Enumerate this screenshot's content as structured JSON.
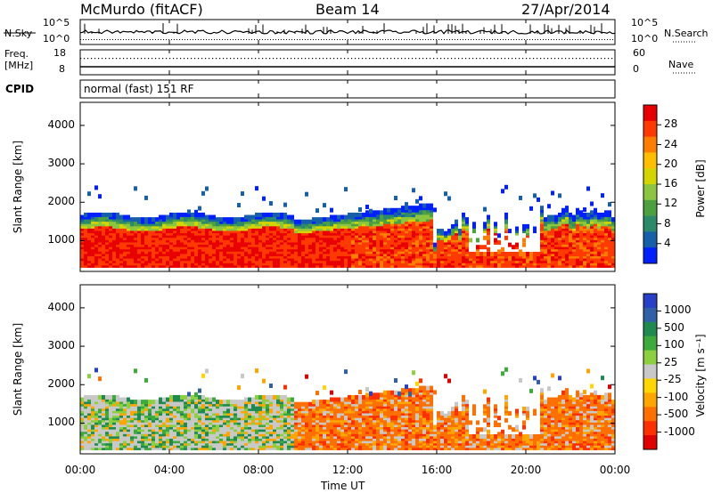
{
  "header": {
    "station": "McMurdo (fitACF)",
    "beam": "Beam 14",
    "date": "27/Apr/2014"
  },
  "sky_panel": {
    "left_label": "N.Sky",
    "right_label": "N.Search",
    "ticks_left": [
      "10^5",
      "10^0"
    ],
    "ticks_right": [
      "10^5",
      "10^0"
    ]
  },
  "freq_panel": {
    "left_label_1": "Freq.",
    "left_label_2": "[MHz]",
    "right_label": "Nave",
    "ticks_left": [
      "18",
      "8"
    ],
    "ticks_right": [
      "60",
      "0"
    ]
  },
  "cpid": {
    "label": "CPID",
    "value": "normal (fast) 151 RF"
  },
  "chart_data": [
    {
      "type": "heatmap",
      "name": "power",
      "ylabel": "Slant Range [km]",
      "yticks": [
        1000,
        2000,
        3000,
        4000
      ],
      "ylim": [
        200,
        4600
      ],
      "colorbar_label": "Power [dB]",
      "colorbar_ticks": [
        "28",
        "24",
        "20",
        "16",
        "12",
        "8",
        "4"
      ],
      "colorbar_colors": [
        "#e80000",
        "#ff3a00",
        "#ff7e00",
        "#ffbe00",
        "#d4d400",
        "#8cc63f",
        "#4da040",
        "#2a8a6a",
        "#1560a8",
        "#0020ff"
      ]
    },
    {
      "type": "heatmap",
      "name": "velocity",
      "ylabel": "Slant Range [km]",
      "yticks": [
        1000,
        2000,
        3000,
        4000
      ],
      "ylim": [
        200,
        4600
      ],
      "colorbar_label": "Velocity [m s⁻¹]",
      "colorbar_ticks": [
        "1000",
        "500",
        "100",
        "25",
        "-25",
        "-100",
        "-500",
        "-1000"
      ],
      "colorbar_colors": [
        "#2840c8",
        "#3060a8",
        "#1f8a50",
        "#3cab3c",
        "#8cd040",
        "#c8c8c8",
        "#ffd700",
        "#ffa500",
        "#ff7000",
        "#ff3000",
        "#e00000"
      ]
    }
  ],
  "xaxis": {
    "ticks": [
      "00:00",
      "04:00",
      "08:00",
      "12:00",
      "16:00",
      "20:00",
      "00:00"
    ],
    "label": "Time UT"
  }
}
